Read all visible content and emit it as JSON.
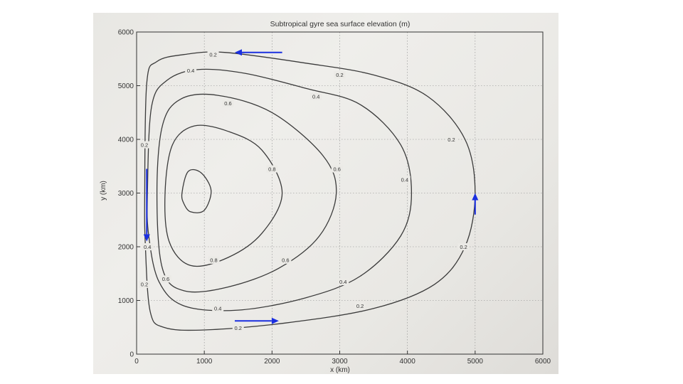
{
  "chart_data": {
    "type": "contour",
    "title": "Subtropical gyre sea surface elevation (m)",
    "xlabel": "x (km)",
    "ylabel": "y (km)",
    "xlim": [
      0,
      6000
    ],
    "ylim": [
      0,
      6000
    ],
    "x_ticks": [
      0,
      1000,
      2000,
      3000,
      4000,
      5000,
      6000
    ],
    "y_ticks": [
      0,
      1000,
      2000,
      3000,
      4000,
      5000,
      6000
    ],
    "grid": true,
    "contours": [
      {
        "level": "0.2",
        "points": [
          [
            120,
            3000
          ],
          [
            150,
            5050
          ],
          [
            300,
            5450
          ],
          [
            700,
            5580
          ],
          [
            1300,
            5620
          ],
          [
            2500,
            5420
          ],
          [
            3500,
            5200
          ],
          [
            4300,
            4800
          ],
          [
            4850,
            4000
          ],
          [
            5000,
            3000
          ],
          [
            4850,
            2000
          ],
          [
            4400,
            1300
          ],
          [
            3500,
            850
          ],
          [
            2200,
            580
          ],
          [
            1000,
            450
          ],
          [
            400,
            500
          ],
          [
            200,
            800
          ],
          [
            130,
            2000
          ]
        ],
        "labels": [
          {
            "text": "0.2",
            "x": 1130,
            "y": 5580
          },
          {
            "text": "0.2",
            "x": 3000,
            "y": 5200
          },
          {
            "text": "0.2",
            "x": 4650,
            "y": 4000
          },
          {
            "text": "0.2",
            "x": 4830,
            "y": 2000
          },
          {
            "text": "0.2",
            "x": 3300,
            "y": 900
          },
          {
            "text": "0.2",
            "x": 1500,
            "y": 490
          },
          {
            "text": "0.2",
            "x": 115,
            "y": 3900
          },
          {
            "text": "0.2",
            "x": 115,
            "y": 1300
          }
        ]
      },
      {
        "level": "0.4",
        "points": [
          [
            160,
            3000
          ],
          [
            220,
            4600
          ],
          [
            450,
            5100
          ],
          [
            900,
            5300
          ],
          [
            1600,
            5230
          ],
          [
            2500,
            4950
          ],
          [
            3300,
            4650
          ],
          [
            3900,
            3900
          ],
          [
            4060,
            3000
          ],
          [
            3900,
            2200
          ],
          [
            3300,
            1450
          ],
          [
            2500,
            1050
          ],
          [
            1500,
            820
          ],
          [
            700,
            900
          ],
          [
            330,
            1350
          ],
          [
            180,
            2200
          ]
        ],
        "labels": [
          {
            "text": "0.4",
            "x": 800,
            "y": 5280
          },
          {
            "text": "0.4",
            "x": 2650,
            "y": 4800
          },
          {
            "text": "0.4",
            "x": 3960,
            "y": 3250
          },
          {
            "text": "0.4",
            "x": 3050,
            "y": 1350
          },
          {
            "text": "0.4",
            "x": 1200,
            "y": 850
          },
          {
            "text": "0.4",
            "x": 160,
            "y": 2000
          }
        ]
      },
      {
        "level": "0.6",
        "points": [
          [
            300,
            3000
          ],
          [
            380,
            4250
          ],
          [
            650,
            4750
          ],
          [
            1200,
            4820
          ],
          [
            2000,
            4500
          ],
          [
            2750,
            3700
          ],
          [
            2950,
            3000
          ],
          [
            2700,
            2200
          ],
          [
            2100,
            1600
          ],
          [
            1350,
            1250
          ],
          [
            700,
            1180
          ],
          [
            380,
            1600
          ]
        ],
        "labels": [
          {
            "text": "0.6",
            "x": 1350,
            "y": 4670
          },
          {
            "text": "0.6",
            "x": 2960,
            "y": 3450
          },
          {
            "text": "0.6",
            "x": 2200,
            "y": 1750
          },
          {
            "text": "0.6",
            "x": 430,
            "y": 1400
          }
        ]
      },
      {
        "level": "0.8",
        "points": [
          [
            420,
            3000
          ],
          [
            530,
            3900
          ],
          [
            850,
            4250
          ],
          [
            1350,
            4150
          ],
          [
            1850,
            3800
          ],
          [
            2150,
            3000
          ],
          [
            1850,
            2250
          ],
          [
            1350,
            1800
          ],
          [
            800,
            1650
          ],
          [
            480,
            2100
          ]
        ],
        "labels": [
          {
            "text": "0.8",
            "x": 2000,
            "y": 3450
          },
          {
            "text": "0.8",
            "x": 1140,
            "y": 1750
          }
        ]
      },
      {
        "level": "",
        "points": [
          [
            670,
            3000
          ],
          [
            760,
            3400
          ],
          [
            950,
            3380
          ],
          [
            1100,
            3050
          ],
          [
            1000,
            2680
          ],
          [
            800,
            2650
          ],
          [
            700,
            2800
          ]
        ],
        "labels": []
      }
    ],
    "annotations": [
      {
        "type": "flow-arrow",
        "from": [
          2150,
          5620
        ],
        "to": [
          1450,
          5620
        ]
      },
      {
        "type": "flow-arrow",
        "from": [
          150,
          3450
        ],
        "to": [
          150,
          2100
        ]
      },
      {
        "type": "flow-arrow",
        "from": [
          1450,
          620
        ],
        "to": [
          2100,
          620
        ]
      },
      {
        "type": "flow-arrow",
        "from": [
          5000,
          2600
        ],
        "to": [
          5000,
          3000
        ]
      }
    ],
    "colors": {
      "contour": "#3a3a3a",
      "arrow": "#1a2fe0",
      "grid": "#8a8a8a",
      "text": "#333333"
    }
  }
}
